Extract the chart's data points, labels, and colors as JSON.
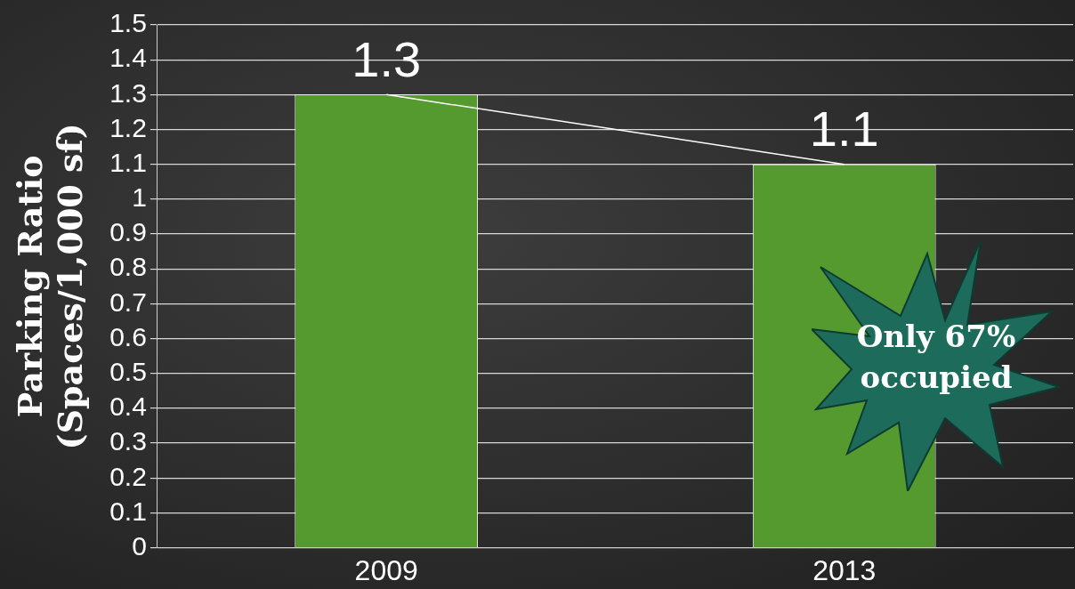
{
  "chart_data": {
    "type": "bar",
    "ylabel": "Parking Ratio\n(Spaces/1,000 sf)",
    "categories": [
      "2009",
      "2013"
    ],
    "series": [
      {
        "color": "#559a2e",
        "values": [
          1.3,
          1.1
        ],
        "value_labels": [
          "1.3",
          "1.1"
        ]
      },
      {
        "type": "line",
        "color": "#ffffff",
        "values": [
          1.3,
          1.1
        ],
        "marker": "none"
      }
    ],
    "ylim": [
      0,
      1.5
    ],
    "yticks": [
      0,
      0.1,
      0.2,
      0.3,
      0.4,
      0.5,
      0.6,
      0.7,
      0.8,
      0.9,
      1,
      1.1,
      1.2,
      1.3,
      1.4,
      1.5
    ],
    "grid": "y",
    "legend": false,
    "annotations": [
      "Only 67%\noccupied"
    ]
  }
}
